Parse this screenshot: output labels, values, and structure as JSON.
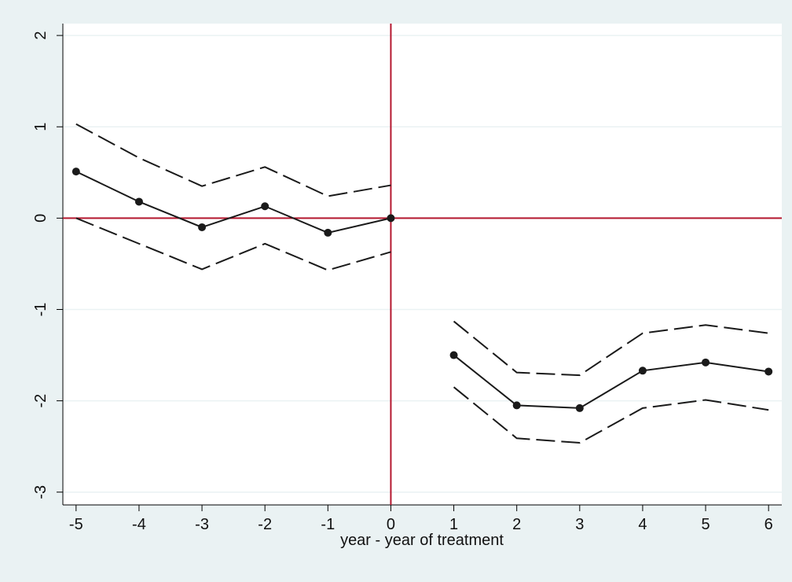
{
  "chart_data": {
    "type": "line",
    "x_label": "year - year of treatment",
    "x": [
      -5,
      -4,
      -3,
      -2,
      -1,
      0,
      null,
      1,
      2,
      3,
      4,
      5,
      6
    ],
    "series": [
      {
        "color": "#1a1a1a",
        "dashed": true,
        "markers": false,
        "values": [
          1.03,
          0.66,
          0.35,
          0.56,
          0.24,
          0.36,
          null,
          -1.13,
          -1.69,
          -1.72,
          -1.26,
          -1.17,
          -1.26
        ]
      },
      {
        "color": "#1a1a1a",
        "dashed": false,
        "markers": true,
        "values": [
          0.51,
          0.18,
          -0.1,
          0.13,
          -0.16,
          0,
          null,
          -1.5,
          -2.05,
          -2.08,
          -1.67,
          -1.58,
          -1.68
        ]
      },
      {
        "color": "#1a1a1a",
        "dashed": true,
        "markers": false,
        "values": [
          0.0,
          -0.28,
          -0.56,
          -0.28,
          -0.57,
          -0.37,
          null,
          -1.85,
          -2.41,
          -2.46,
          -2.08,
          -1.99,
          -2.1
        ]
      }
    ],
    "xlim": [
      -5.21,
      6.21
    ],
    "ylim": [
      -3.14,
      2.13
    ],
    "xticks": [
      -5,
      -4,
      -3,
      -2,
      -1,
      0,
      1,
      2,
      3,
      4,
      5,
      6
    ],
    "yticks": [
      -3,
      -2,
      -1,
      0,
      1,
      2
    ],
    "grid": true,
    "reference_lines": {
      "x": 0,
      "y": 0,
      "color": "#b5172f"
    }
  }
}
